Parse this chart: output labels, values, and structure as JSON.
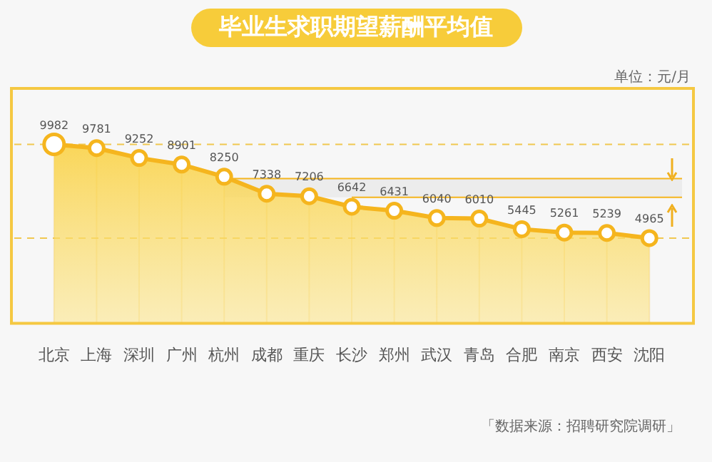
{
  "chart_data": {
    "type": "area",
    "title": "毕业生求职期望薪酬平均值",
    "categories": [
      "北京",
      "上海",
      "深圳",
      "广州",
      "杭州",
      "成都",
      "重庆",
      "长沙",
      "郑州",
      "武汉",
      "青岛",
      "合肥",
      "南京",
      "西安",
      "沈阳"
    ],
    "values": [
      9982,
      9781,
      9252,
      8901,
      8250,
      7338,
      7206,
      6642,
      6431,
      6040,
      6010,
      5445,
      5261,
      5239,
      4965
    ],
    "color": "#f5b51e",
    "ylim": [
      400,
      12900
    ],
    "data_labels": true,
    "marker": "circle",
    "grid": "x",
    "legend": false,
    "ref_lines": [
      {
        "axis": "y",
        "value": 9982,
        "color": "#f0c850",
        "line_style": "dashed"
      },
      {
        "axis": "y",
        "value": 4965,
        "color": "#f0c850",
        "line_style": "dashed"
      }
    ],
    "bands": [
      {
        "axis": "y",
        "from": 7150,
        "to": 8150,
        "color": "#ececec"
      }
    ],
    "annotations": [
      "单位：元/月",
      "「数据来源：招聘研究院调研」"
    ]
  }
}
